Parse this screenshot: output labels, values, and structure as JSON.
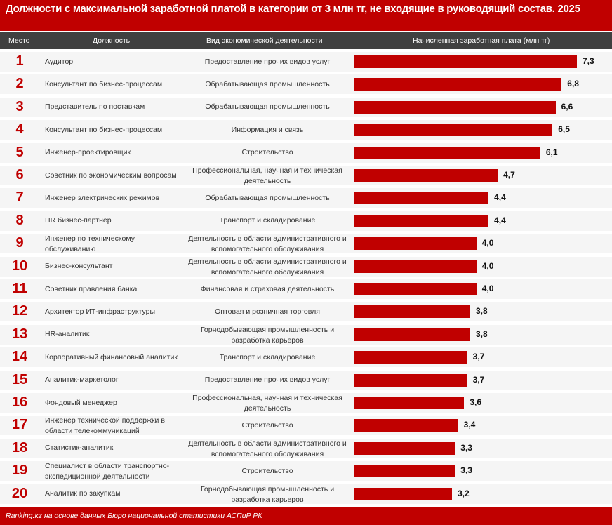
{
  "title": "Должности с максимальной заработной платой в категории от 3 млн тг, не входящие в руководящий состав. 2025",
  "header": {
    "rank": "Место",
    "position": "Должность",
    "activity": "Вид экономической деятельности",
    "salary": "Начисленная заработная плата (млн тг)"
  },
  "footer": "Ranking.kz на основе данных Бюро национальной статистики АСПиР РК",
  "colors": {
    "accent": "#c00000",
    "header_bg": "#404040",
    "row_bg": "#f5f5f5"
  },
  "chart_data": {
    "type": "bar",
    "orientation": "horizontal",
    "xlim": [
      0,
      7.3
    ],
    "rows": [
      {
        "rank": "1",
        "position": "Аудитор",
        "activity": "Предоставление прочих видов услуг",
        "value": 7.3,
        "label": "7,3"
      },
      {
        "rank": "2",
        "position": "Консультант по бизнес-процессам",
        "activity": "Обрабатывающая промышленность",
        "value": 6.8,
        "label": "6,8"
      },
      {
        "rank": "3",
        "position": "Представитель по поставкам",
        "activity": "Обрабатывающая промышленность",
        "value": 6.6,
        "label": "6,6"
      },
      {
        "rank": "4",
        "position": "Консультант по бизнес-процессам",
        "activity": "Информация и связь",
        "value": 6.5,
        "label": "6,5"
      },
      {
        "rank": "5",
        "position": "Инженер-проектировщик",
        "activity": "Строительство",
        "value": 6.1,
        "label": "6,1"
      },
      {
        "rank": "6",
        "position": "Советник по экономическим вопросам",
        "activity": "Профессиональная, научная и техническая деятельность",
        "value": 4.7,
        "label": "4,7"
      },
      {
        "rank": "7",
        "position": "Инженер электрических режимов",
        "activity": "Обрабатывающая промышленность",
        "value": 4.4,
        "label": "4,4"
      },
      {
        "rank": "8",
        "position": "HR бизнес-партнёр",
        "activity": "Транспорт и складирование",
        "value": 4.4,
        "label": "4,4"
      },
      {
        "rank": "9",
        "position": "Инженер по техническому обслуживанию",
        "activity": "Деятельность в области административного и вспомогательного обслуживания",
        "value": 4.0,
        "label": "4,0"
      },
      {
        "rank": "10",
        "position": "Бизнес-консультант",
        "activity": "Деятельность в области административного и вспомогательного обслуживания",
        "value": 4.0,
        "label": "4,0"
      },
      {
        "rank": "11",
        "position": "Советник правления банка",
        "activity": "Финансовая и страховая деятельность",
        "value": 4.0,
        "label": "4,0"
      },
      {
        "rank": "12",
        "position": "Архитектор ИТ-инфраструктуры",
        "activity": "Оптовая и розничная торговля",
        "value": 3.8,
        "label": "3,8"
      },
      {
        "rank": "13",
        "position": "HR-аналитик",
        "activity": "Горнодобывающая промышленность и разработка карьеров",
        "value": 3.8,
        "label": "3,8"
      },
      {
        "rank": "14",
        "position": "Корпоративный финансовый аналитик",
        "activity": "Транспорт и складирование",
        "value": 3.7,
        "label": "3,7"
      },
      {
        "rank": "15",
        "position": "Аналитик-маркетолог",
        "activity": "Предоставление прочих видов услуг",
        "value": 3.7,
        "label": "3,7"
      },
      {
        "rank": "16",
        "position": "Фондовый менеджер",
        "activity": "Профессиональная, научная и техническая деятельность",
        "value": 3.6,
        "label": "3,6"
      },
      {
        "rank": "17",
        "position": "Инженер технической поддержки в области телекоммуникаций",
        "activity": "Строительство",
        "value": 3.4,
        "label": "3,4"
      },
      {
        "rank": "18",
        "position": "Статистик-аналитик",
        "activity": "Деятельность в области административного и вспомогательного обслуживания",
        "value": 3.3,
        "label": "3,3"
      },
      {
        "rank": "19",
        "position": "Специалист в области транспортно-экспедиционной деятельности",
        "activity": "Строительство",
        "value": 3.3,
        "label": "3,3"
      },
      {
        "rank": "20",
        "position": "Аналитик по закупкам",
        "activity": "Горнодобывающая промышленность и разработка карьеров",
        "value": 3.2,
        "label": "3,2"
      }
    ]
  }
}
